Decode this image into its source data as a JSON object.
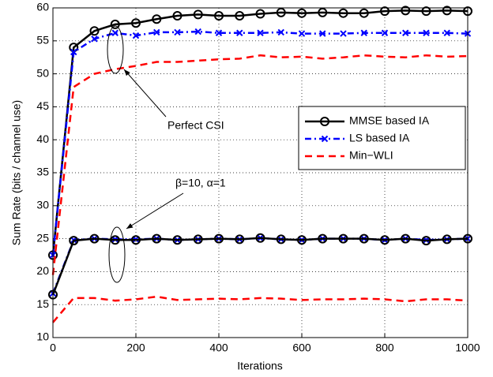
{
  "chart_data": {
    "type": "line",
    "xlabel": "Iterations",
    "ylabel": "Sum Rate (bits / channel use)",
    "x": [
      0,
      50,
      100,
      150,
      200,
      250,
      300,
      350,
      400,
      450,
      500,
      550,
      600,
      650,
      700,
      750,
      800,
      850,
      900,
      950,
      1000
    ],
    "series": [
      {
        "name": "MMSE based IA",
        "color": "#000000",
        "linestyle": "solid",
        "marker": "o",
        "values": [
          22.5,
          54,
          56.5,
          57.5,
          57.7,
          58.3,
          58.8,
          59,
          58.8,
          58.8,
          59.1,
          59.3,
          59.2,
          59.3,
          59.2,
          59.2,
          59.5,
          59.6,
          59.5,
          59.6,
          59.5
        ]
      },
      {
        "name": "LS based IA",
        "color": "#0000ff",
        "linestyle": "dashdot",
        "marker": "x",
        "values": [
          22.5,
          53.3,
          55.3,
          56.2,
          55.8,
          56.3,
          56.3,
          56.4,
          56.2,
          56.2,
          56.2,
          56.3,
          56.1,
          56.1,
          56.1,
          56.2,
          56.2,
          56.2,
          56.2,
          56.2,
          56.1
        ]
      },
      {
        "name": "Min−WLI",
        "color": "#ff0000",
        "linestyle": "dashed",
        "marker": null,
        "values": [
          19.5,
          48,
          50,
          50.7,
          51.2,
          51.8,
          51.8,
          52,
          52.2,
          52.3,
          52.8,
          52.5,
          52.6,
          52.3,
          52.5,
          52.8,
          52.6,
          52.5,
          52.8,
          52.6,
          52.7
        ]
      },
      {
        "name": null,
        "color": "#0000ff",
        "linestyle": "dashdot",
        "marker": "x",
        "values": [
          16.7,
          24.8,
          25,
          24.9,
          24.9,
          25,
          24.8,
          24.9,
          25,
          24.9,
          25.1,
          24.9,
          24.8,
          25,
          25,
          25,
          24.8,
          25,
          24.8,
          24.9,
          25
        ]
      },
      {
        "name": null,
        "color": "#000000",
        "linestyle": "solid",
        "marker": "o",
        "values": [
          16.5,
          24.7,
          25,
          24.8,
          24.8,
          25,
          24.8,
          24.9,
          25,
          24.9,
          25.1,
          24.9,
          24.8,
          25,
          25,
          25,
          24.8,
          25,
          24.7,
          24.9,
          25
        ]
      },
      {
        "name": null,
        "color": "#ff0000",
        "linestyle": "dashed",
        "marker": null,
        "values": [
          12.3,
          16,
          16,
          15.6,
          15.8,
          16.2,
          15.7,
          15.8,
          15.9,
          15.8,
          16,
          15.9,
          15.7,
          15.8,
          15.8,
          15.9,
          15.8,
          15.5,
          15.8,
          15.8,
          15.6
        ]
      }
    ],
    "annotations": [
      "Perfect CSI",
      "β=10, α=1"
    ],
    "xlim": [
      0,
      1000
    ],
    "xticks": [
      0,
      200,
      400,
      600,
      800,
      1000
    ],
    "ylim": [
      10,
      60
    ],
    "yticks": [
      10,
      15,
      20,
      25,
      30,
      35,
      40,
      45,
      50,
      55,
      60
    ],
    "grid": true,
    "legend": "upper right"
  }
}
